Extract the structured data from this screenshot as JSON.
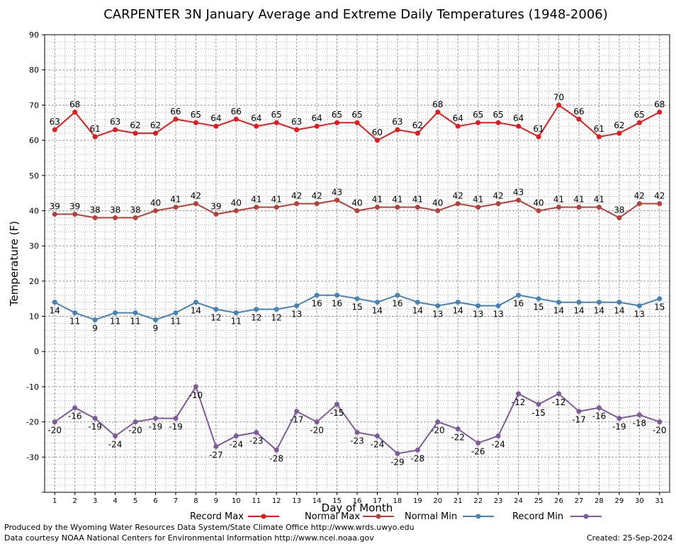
{
  "chart_data": {
    "type": "line",
    "title": "CARPENTER 3N January Average and Extreme Daily Temperatures (1948-2006)",
    "xlabel": "Day of Month",
    "ylabel": "Temperature (F)",
    "xlim": [
      1,
      31
    ],
    "ylim": [
      -40,
      90
    ],
    "ytick_step": 10,
    "grid": true,
    "legend_position": "bottom",
    "x": [
      1,
      2,
      3,
      4,
      5,
      6,
      7,
      8,
      9,
      10,
      11,
      12,
      13,
      14,
      15,
      16,
      17,
      18,
      19,
      20,
      21,
      22,
      23,
      24,
      25,
      26,
      27,
      28,
      29,
      30,
      31
    ],
    "series": [
      {
        "name": "Record Max",
        "color": "#e41a1c",
        "label_position": "above",
        "values": [
          63,
          68,
          61,
          63,
          62,
          62,
          66,
          65,
          64,
          66,
          64,
          65,
          63,
          64,
          65,
          65,
          60,
          63,
          62,
          68,
          64,
          65,
          65,
          64,
          61,
          70,
          66,
          61,
          62,
          65,
          68
        ]
      },
      {
        "name": "Normal Max",
        "color": "#b5403a",
        "label_position": "above",
        "values": [
          39,
          39,
          38,
          38,
          38,
          40,
          41,
          42,
          39,
          40,
          41,
          41,
          42,
          42,
          43,
          40,
          41,
          41,
          41,
          40,
          42,
          41,
          42,
          43,
          40,
          41,
          41,
          41,
          38,
          42,
          42
        ]
      },
      {
        "name": "Normal Min",
        "color": "#4682b4",
        "label_position": "below",
        "values": [
          14,
          11,
          9,
          11,
          11,
          9,
          11,
          14,
          12,
          11,
          12,
          12,
          13,
          16,
          16,
          15,
          14,
          16,
          14,
          13,
          14,
          13,
          13,
          16,
          15,
          14,
          14,
          14,
          14,
          13,
          15
        ]
      },
      {
        "name": "Record Min",
        "color": "#7e5a9b",
        "label_position": "below",
        "values": [
          -20,
          -16,
          -19,
          -24,
          -20,
          -19,
          -19,
          -10,
          -27,
          -24,
          -23,
          -28,
          -17,
          -20,
          -15,
          -23,
          -24,
          -29,
          -28,
          -20,
          -22,
          -26,
          -24,
          -12,
          -15,
          -12,
          -17,
          -16,
          -19,
          -18,
          -20
        ]
      }
    ]
  },
  "footer": {
    "produced_by": "Produced by the Wyoming Water Resources Data System/State Climate Office http://www.wrds.uwyo.edu",
    "courtesy": "Data courtesy NOAA National Centers for Environmental Information http://www.ncei.noaa.gov",
    "created": "Created:  25-Sep-2024"
  }
}
